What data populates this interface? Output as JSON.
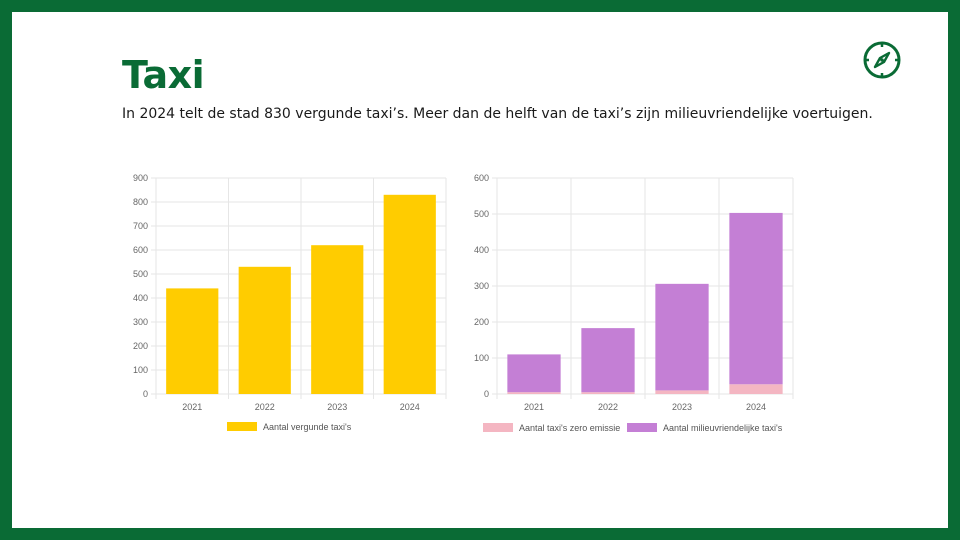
{
  "page": {
    "title": "Taxi",
    "subtitle": "In 2024 telt de stad 830 vergunde taxi’s. Meer dan de helft van de taxi’s zijn milieuvriendelijke voertuigen.",
    "icon": "compass-icon",
    "colors": {
      "brand": "#0a6b35",
      "bar_yellow": "#ffcc00",
      "zero_pink": "#f4b6c2",
      "eco_purple": "#c47fd5"
    }
  },
  "chart_data": [
    {
      "type": "bar",
      "categories": [
        "2021",
        "2022",
        "2023",
        "2024"
      ],
      "series": [
        {
          "name": "Aantal vergunde taxi's",
          "values": [
            440,
            530,
            620,
            830
          ],
          "color": "#ffcc00"
        }
      ],
      "ylim": [
        0,
        900
      ],
      "yticks": [
        0,
        100,
        200,
        300,
        400,
        500,
        600,
        700,
        800,
        900
      ],
      "grid": true,
      "legend": "bottom"
    },
    {
      "type": "bar",
      "stacked": true,
      "categories": [
        "2021",
        "2022",
        "2023",
        "2024"
      ],
      "series": [
        {
          "name": "Aantal taxi's zero emissie",
          "values": [
            5,
            5,
            10,
            27
          ],
          "color": "#f4b6c2"
        },
        {
          "name": "Aantal milieuvriendelijke taxi's",
          "values": [
            105,
            178,
            296,
            476
          ],
          "color": "#c47fd5"
        }
      ],
      "ylim": [
        0,
        600
      ],
      "yticks": [
        0,
        100,
        200,
        300,
        400,
        500,
        600
      ],
      "grid": true,
      "legend": "bottom"
    }
  ]
}
